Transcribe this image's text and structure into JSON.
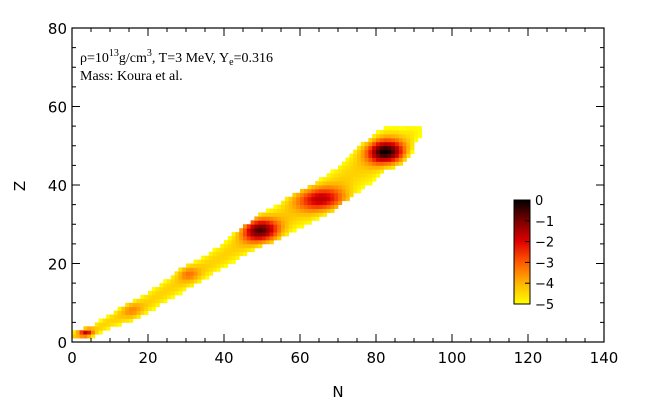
{
  "chart_data": {
    "type": "heatmap",
    "xlabel": "N",
    "ylabel": "Z",
    "xlim": [
      0,
      140
    ],
    "ylim": [
      0,
      80
    ],
    "xticks": [
      "0",
      "20",
      "40",
      "60",
      "80",
      "100",
      "120",
      "140"
    ],
    "yticks": [
      "0",
      "20",
      "40",
      "60",
      "80"
    ],
    "annotation": {
      "rho": "ρ=10",
      "rho_exp": "13",
      "rho_unit": "g/cm",
      "rho_unit_exp": "3",
      "temp": ", T=3 MeV, Y",
      "ye_sub": "e",
      "ye_val": "=0.316",
      "mass": "Mass: Koura et al."
    },
    "colorbar": {
      "ticks": [
        "0",
        "−1",
        "−2",
        "−3",
        "−4",
        "−5"
      ],
      "range": [
        -5,
        0
      ],
      "colors": [
        "#000000",
        "#7a0000",
        "#e00000",
        "#ff5a00",
        "#ffb400",
        "#ffff00"
      ]
    },
    "ridge": [
      [
        2,
        1
      ],
      [
        6,
        3
      ],
      [
        10,
        5
      ],
      [
        15,
        7
      ],
      [
        20,
        10
      ],
      [
        25,
        13
      ],
      [
        30,
        16
      ],
      [
        35,
        19
      ],
      [
        40,
        22
      ],
      [
        45,
        25
      ],
      [
        49,
        28
      ],
      [
        53,
        30
      ],
      [
        57,
        32
      ],
      [
        62,
        34
      ],
      [
        66,
        37
      ],
      [
        70,
        40
      ],
      [
        74,
        43
      ],
      [
        78,
        45
      ],
      [
        82,
        49
      ],
      [
        86,
        50
      ],
      [
        90,
        53
      ],
      [
        96,
        55
      ],
      [
        102,
        56
      ]
    ],
    "halfwidth": [
      [
        0,
        1
      ],
      [
        20,
        2.5
      ],
      [
        40,
        3
      ],
      [
        60,
        4
      ],
      [
        80,
        5
      ],
      [
        100,
        2
      ]
    ],
    "peaks": [
      {
        "n": 82,
        "z": 48,
        "amp": 4.4,
        "sn": 5,
        "sz": 3
      },
      {
        "n": 49,
        "z": 28,
        "amp": 3.8,
        "sn": 5,
        "sz": 3
      },
      {
        "n": 65,
        "z": 36,
        "amp": 2.8,
        "sn": 7,
        "sz": 3
      },
      {
        "n": 3,
        "z": 2,
        "amp": 2.8,
        "sn": 2,
        "sz": 1
      },
      {
        "n": 30,
        "z": 17,
        "amp": 1.2,
        "sn": 3,
        "sz": 2
      },
      {
        "n": 15,
        "z": 8,
        "amp": 1.0,
        "sn": 3,
        "sz": 2
      }
    ]
  }
}
